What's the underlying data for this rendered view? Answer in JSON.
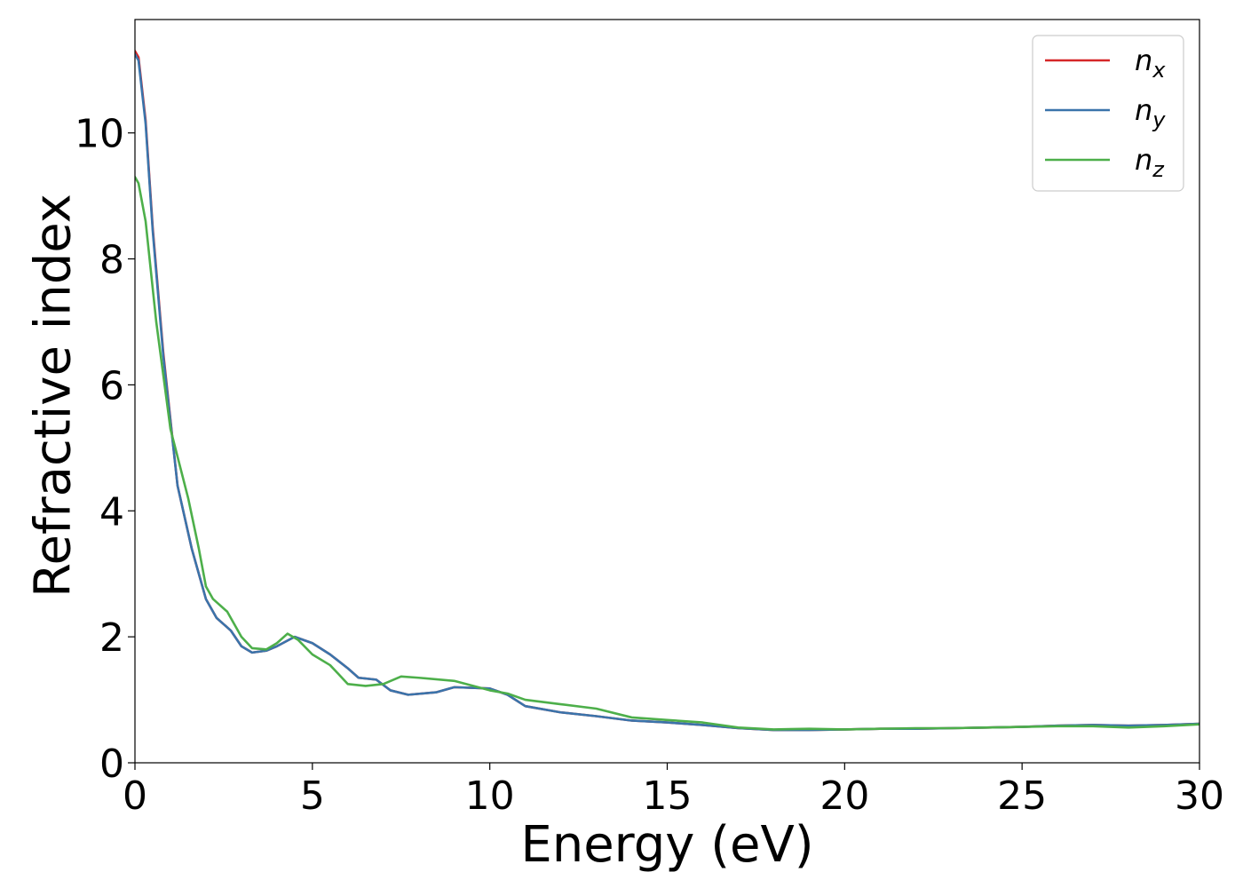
{
  "chart_data": {
    "type": "line",
    "xlabel": "Energy (eV)",
    "ylabel": "Refractive index",
    "xlim": [
      0,
      30
    ],
    "ylim": [
      0,
      11.8
    ],
    "xticks": [
      0,
      5,
      10,
      15,
      20,
      25,
      30
    ],
    "yticks": [
      0,
      2,
      4,
      6,
      8,
      10
    ],
    "grid": false,
    "legend_position": "top-right",
    "series": [
      {
        "name": "n_x",
        "legend_base": "n",
        "legend_sub": "x",
        "color": "#d62728",
        "x": [
          0,
          0.1,
          0.3,
          0.5,
          0.8,
          1.2,
          1.6,
          2.0,
          2.3,
          2.7,
          3.0,
          3.3,
          3.7,
          4.0,
          4.5,
          5.0,
          5.5,
          6.0,
          6.3,
          6.8,
          7.2,
          7.7,
          8.5,
          9.0,
          10.0,
          10.5,
          11.0,
          12.0,
          13.0,
          14.0,
          15.0,
          16.0,
          17.0,
          18.0,
          19.0,
          20.0,
          21.0,
          22.0,
          23.0,
          24.0,
          25.0,
          26.0,
          27.0,
          28.0,
          29.0,
          30.0
        ],
        "y": [
          11.3,
          11.2,
          10.2,
          8.5,
          6.5,
          4.4,
          3.4,
          2.6,
          2.3,
          2.1,
          1.85,
          1.75,
          1.78,
          1.85,
          2.0,
          1.9,
          1.72,
          1.5,
          1.35,
          1.32,
          1.15,
          1.08,
          1.12,
          1.2,
          1.18,
          1.08,
          0.9,
          0.8,
          0.74,
          0.67,
          0.64,
          0.6,
          0.55,
          0.52,
          0.52,
          0.53,
          0.54,
          0.54,
          0.55,
          0.56,
          0.57,
          0.59,
          0.6,
          0.59,
          0.6,
          0.62
        ]
      },
      {
        "name": "n_y",
        "legend_base": "n",
        "legend_sub": "y",
        "color": "#3a74ab",
        "x": [
          0,
          0.1,
          0.3,
          0.5,
          0.8,
          1.2,
          1.6,
          2.0,
          2.3,
          2.7,
          3.0,
          3.3,
          3.7,
          4.0,
          4.5,
          5.0,
          5.5,
          6.0,
          6.3,
          6.8,
          7.2,
          7.7,
          8.5,
          9.0,
          10.0,
          10.5,
          11.0,
          12.0,
          13.0,
          14.0,
          15.0,
          16.0,
          17.0,
          18.0,
          19.0,
          20.0,
          21.0,
          22.0,
          23.0,
          24.0,
          25.0,
          26.0,
          27.0,
          28.0,
          29.0,
          30.0
        ],
        "y": [
          11.25,
          11.15,
          10.15,
          8.45,
          6.45,
          4.4,
          3.4,
          2.6,
          2.3,
          2.1,
          1.85,
          1.75,
          1.78,
          1.85,
          2.0,
          1.9,
          1.72,
          1.5,
          1.35,
          1.32,
          1.15,
          1.08,
          1.12,
          1.2,
          1.18,
          1.08,
          0.9,
          0.8,
          0.74,
          0.67,
          0.64,
          0.6,
          0.55,
          0.52,
          0.52,
          0.53,
          0.54,
          0.54,
          0.55,
          0.56,
          0.57,
          0.59,
          0.6,
          0.59,
          0.6,
          0.62
        ]
      },
      {
        "name": "n_z",
        "legend_base": "n",
        "legend_sub": "z",
        "color": "#4daf4a",
        "x": [
          0,
          0.1,
          0.3,
          0.6,
          1.0,
          1.5,
          1.8,
          2.0,
          2.2,
          2.6,
          3.0,
          3.3,
          3.7,
          4.0,
          4.3,
          4.6,
          5.0,
          5.5,
          6.0,
          6.5,
          7.0,
          7.5,
          8.0,
          9.0,
          10.0,
          10.5,
          11.0,
          12.0,
          13.0,
          14.0,
          15.0,
          16.0,
          17.0,
          18.0,
          19.0,
          20.0,
          21.0,
          22.0,
          23.0,
          24.0,
          25.0,
          26.0,
          27.0,
          28.0,
          29.0,
          30.0
        ],
        "y": [
          9.3,
          9.2,
          8.6,
          7.0,
          5.3,
          4.2,
          3.4,
          2.8,
          2.6,
          2.4,
          2.0,
          1.82,
          1.8,
          1.9,
          2.05,
          1.95,
          1.72,
          1.55,
          1.25,
          1.22,
          1.25,
          1.37,
          1.35,
          1.3,
          1.15,
          1.1,
          1.0,
          0.93,
          0.86,
          0.72,
          0.68,
          0.64,
          0.56,
          0.53,
          0.54,
          0.53,
          0.54,
          0.55,
          0.55,
          0.56,
          0.57,
          0.58,
          0.58,
          0.56,
          0.58,
          0.61
        ]
      }
    ]
  }
}
